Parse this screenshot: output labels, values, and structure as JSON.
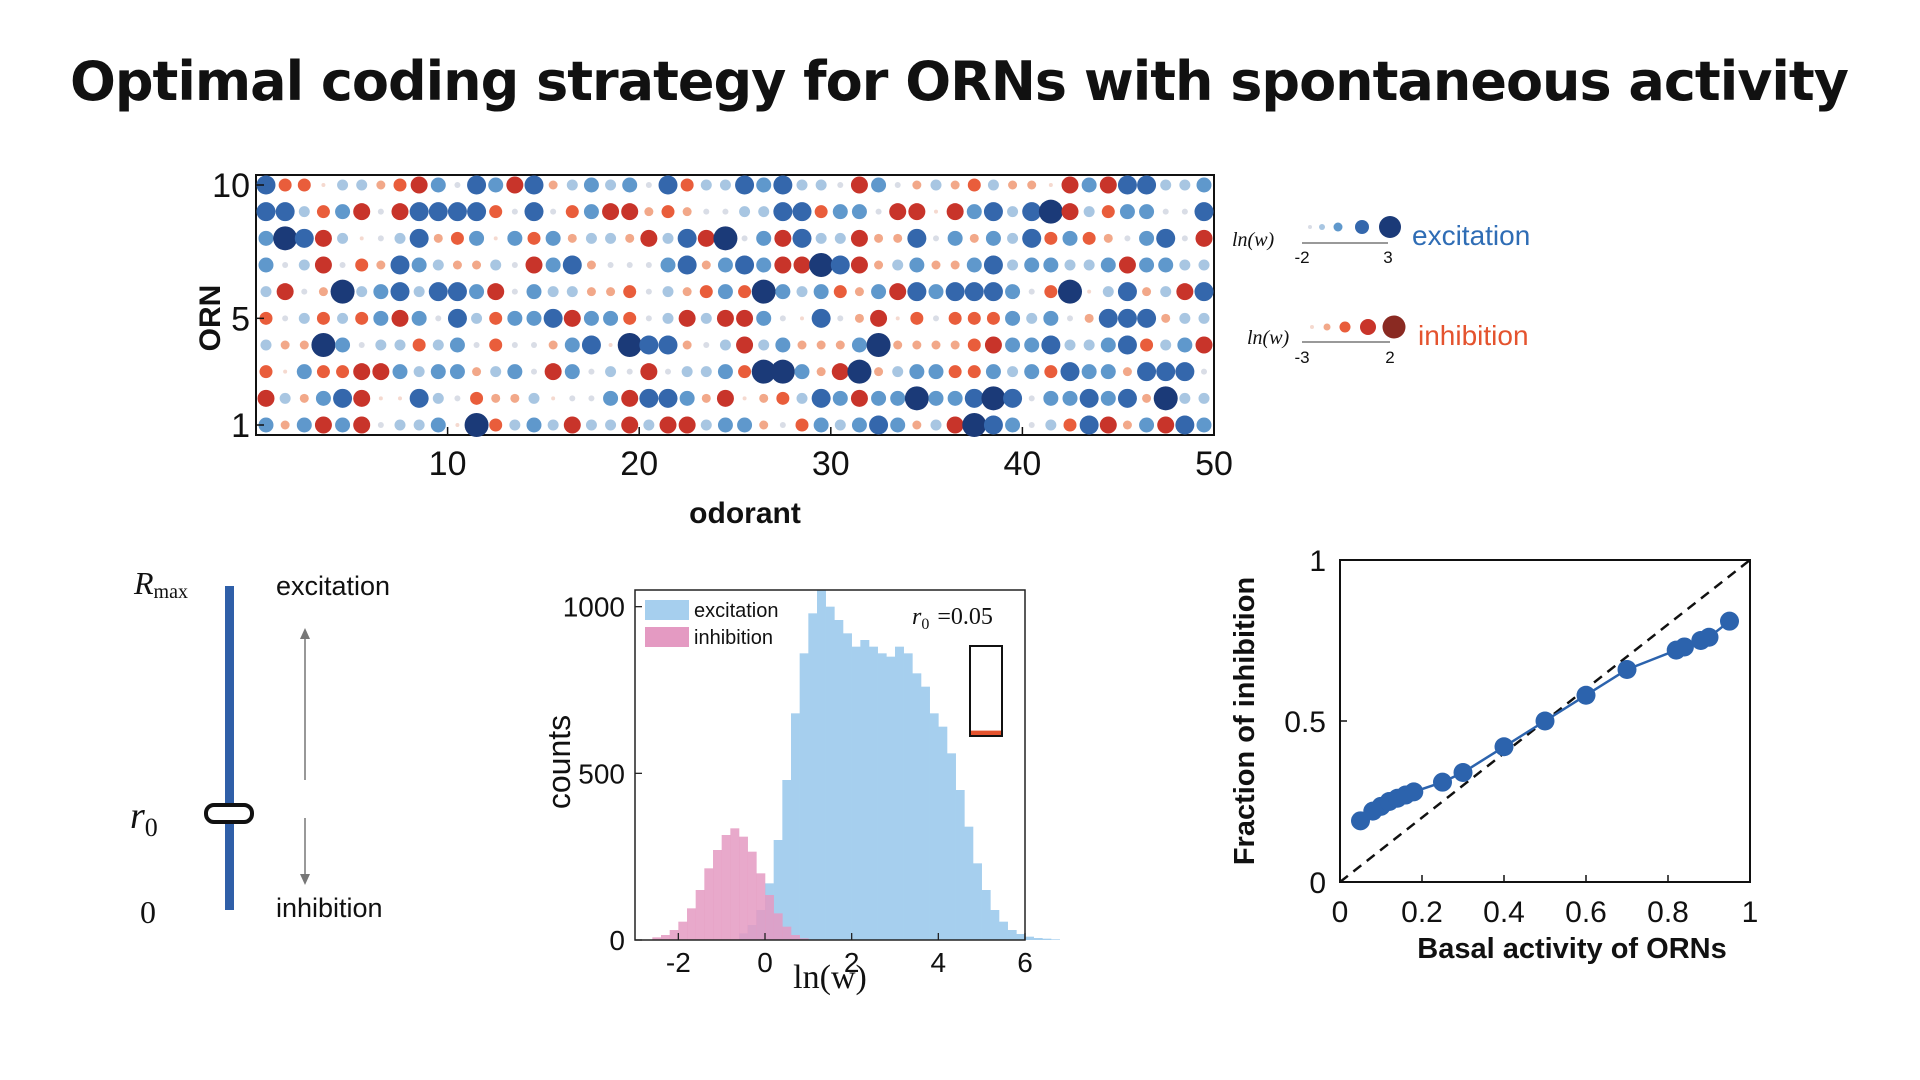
{
  "title": "Optimal coding strategy for ORNs with spontaneous activity",
  "colors": {
    "excitation_text": "#2f6db5",
    "inhibition_text": "#e4532e",
    "excitation_scale": [
      "#d9dde6",
      "#a8c6e2",
      "#5f98cc",
      "#3467ac",
      "#1b3a78"
    ],
    "inhibition_scale": [
      "#f5d9cf",
      "#f2a889",
      "#e95d3b",
      "#c8342a",
      "#8a2a22"
    ],
    "hist_excitation": "#a6cfee",
    "hist_inhibition": "#e49ac2",
    "line_blue": "#2c63ad"
  },
  "chart_data": [
    {
      "type": "scatter",
      "subtype": "bubble-matrix",
      "xlabel": "odorant",
      "ylabel": "ORN",
      "xlim": [
        1,
        50
      ],
      "ylim": [
        1,
        10
      ],
      "xticks": [
        "10",
        "20",
        "30",
        "40",
        "50"
      ],
      "yticks": [
        "1",
        "5",
        "10"
      ],
      "n_odorants": 50,
      "n_orns": 10,
      "legend": [
        {
          "label": "excitation",
          "axis_label": "ln(w)",
          "range_labels": [
            "-2",
            "3"
          ]
        },
        {
          "label": "inhibition",
          "axis_label": "ln(w)",
          "range_labels": [
            "-3",
            "2"
          ]
        }
      ]
    },
    {
      "type": "diagram",
      "top_label": "R",
      "top_label_sub": "max",
      "mid_label": "r",
      "mid_label_sub": "0",
      "bottom_label": "0",
      "up_label": "excitation",
      "down_label": "inhibition"
    },
    {
      "type": "bar",
      "subtype": "histogram",
      "xlabel": "ln(w)",
      "ylabel": "counts",
      "xlim": [
        -3,
        6
      ],
      "ylim": [
        0,
        1050
      ],
      "xticks": [
        "-2",
        "0",
        "2",
        "4",
        "6"
      ],
      "yticks": [
        "0",
        "500",
        "1000"
      ],
      "annotation": "r",
      "annotation_sub": "0",
      "annotation_value": "=0.05",
      "inset_inhibition_fraction": 0.05,
      "series": [
        {
          "name": "excitation",
          "x_start": -0.6,
          "bin_width": 0.2,
          "values": [
            20,
            45,
            90,
            170,
            300,
            480,
            680,
            860,
            980,
            1050,
            1000,
            960,
            920,
            880,
            900,
            880,
            860,
            850,
            880,
            860,
            800,
            760,
            680,
            640,
            560,
            450,
            340,
            230,
            150,
            90,
            55,
            30,
            18,
            10,
            6,
            4,
            2
          ]
        },
        {
          "name": "inhibition",
          "x_start": -2.6,
          "bin_width": 0.2,
          "values": [
            8,
            15,
            30,
            55,
            95,
            150,
            215,
            270,
            315,
            335,
            310,
            265,
            200,
            135,
            80,
            40,
            15,
            5
          ]
        }
      ]
    },
    {
      "type": "line",
      "xlabel": "Basal activity of ORNs",
      "ylabel": "Fraction of inhibition",
      "xlim": [
        0,
        1
      ],
      "ylim": [
        0,
        1
      ],
      "xticks": [
        "0",
        "0.2",
        "0.4",
        "0.6",
        "0.8",
        "1"
      ],
      "yticks": [
        "0",
        "0.5",
        "1"
      ],
      "reference_line": "y = x (dashed)",
      "x": [
        0.05,
        0.08,
        0.1,
        0.12,
        0.14,
        0.16,
        0.18,
        0.25,
        0.3,
        0.4,
        0.5,
        0.6,
        0.7,
        0.82,
        0.84,
        0.88,
        0.9,
        0.95
      ],
      "y": [
        0.19,
        0.22,
        0.235,
        0.25,
        0.26,
        0.27,
        0.28,
        0.31,
        0.34,
        0.42,
        0.5,
        0.58,
        0.66,
        0.72,
        0.73,
        0.75,
        0.76,
        0.81
      ]
    }
  ]
}
